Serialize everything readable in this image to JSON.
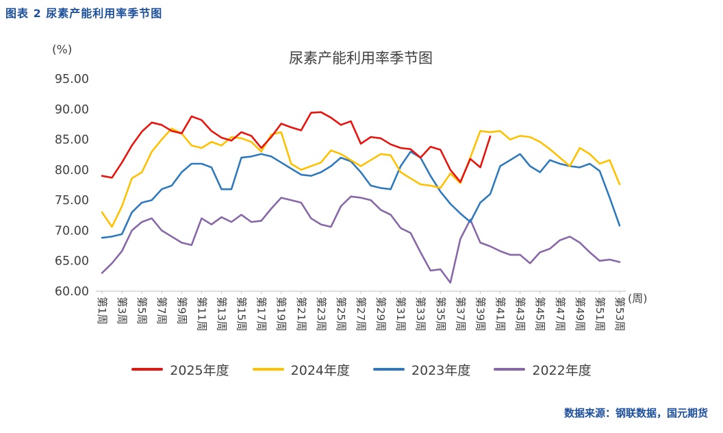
{
  "header": {
    "caption": "图表 2 尿素产能利用率季节图"
  },
  "footer": {
    "source": "数据来源：钢联数据，国元期货"
  },
  "chart_data": {
    "type": "line",
    "title": "尿素产能利用率季节图",
    "grid": false,
    "legend_position": "bottom",
    "y_axis": {
      "unit_label": "(%)",
      "min": 60,
      "max": 95,
      "tick_step": 5,
      "tick_labels": [
        "95.00",
        "90.00",
        "85.00",
        "80.00",
        "75.00",
        "70.00",
        "65.00",
        "60.00"
      ]
    },
    "x_axis": {
      "unit_label": "(周)",
      "weeks": 53,
      "tick_labels": [
        "第1周",
        "第3周",
        "第5周",
        "第7周",
        "第9周",
        "第11周",
        "第13周",
        "第15周",
        "第17周",
        "第19周",
        "第21周",
        "第23周",
        "第25周",
        "第27周",
        "第29周",
        "第31周",
        "第33周",
        "第35周",
        "第37周",
        "第39周",
        "第41周",
        "第43周",
        "第45周",
        "第47周",
        "第49周",
        "第51周",
        "第53周"
      ]
    },
    "series": [
      {
        "name": "2025年度",
        "color": "#e8130c",
        "values": [
          79.0,
          78.7,
          81.2,
          84.0,
          86.3,
          87.8,
          87.4,
          86.4,
          86.0,
          88.8,
          88.2,
          86.4,
          85.3,
          84.8,
          86.2,
          85.6,
          83.6,
          85.4,
          87.6,
          87.0,
          86.5,
          89.4,
          89.5,
          88.6,
          87.4,
          88.0,
          84.3,
          85.4,
          85.2,
          84.2,
          83.6,
          83.4,
          82.0,
          83.8,
          83.3,
          80.0,
          78.0,
          81.8,
          80.4,
          85.5,
          null,
          null,
          null,
          null,
          null,
          null,
          null,
          null,
          null,
          null,
          null,
          null,
          null
        ]
      },
      {
        "name": "2024年度",
        "color": "#ffc000",
        "values": [
          73.0,
          70.6,
          74.0,
          78.6,
          79.6,
          83.0,
          85.0,
          86.8,
          86.0,
          84.0,
          83.6,
          84.6,
          84.0,
          85.4,
          85.2,
          84.6,
          83.0,
          85.8,
          86.2,
          81.0,
          80.0,
          80.6,
          81.2,
          83.2,
          82.6,
          81.6,
          80.6,
          81.6,
          82.6,
          82.4,
          79.6,
          78.6,
          77.6,
          77.4,
          77.0,
          79.4,
          77.8,
          82.0,
          86.4,
          86.2,
          86.4,
          85.0,
          85.6,
          85.4,
          84.6,
          83.4,
          82.0,
          80.6,
          83.6,
          82.6,
          81.0,
          81.6,
          77.6
        ]
      },
      {
        "name": "2023年度",
        "color": "#2e79bd",
        "values": [
          68.8,
          69.0,
          69.4,
          73.0,
          74.6,
          75.0,
          76.8,
          77.4,
          79.6,
          81.0,
          81.0,
          80.4,
          76.8,
          76.8,
          82.0,
          82.2,
          82.6,
          82.2,
          81.2,
          80.2,
          79.2,
          79.0,
          79.6,
          80.6,
          82.0,
          81.4,
          79.6,
          77.4,
          77.0,
          76.8,
          80.6,
          83.0,
          82.0,
          79.0,
          76.4,
          74.4,
          72.8,
          71.4,
          74.6,
          76.0,
          80.6,
          81.6,
          82.6,
          80.6,
          79.6,
          81.6,
          81.0,
          80.6,
          80.4,
          81.0,
          79.8,
          75.4,
          70.8
        ]
      },
      {
        "name": "2022年度",
        "color": "#8767a8",
        "values": [
          63.0,
          64.6,
          66.6,
          70.0,
          71.4,
          72.0,
          70.0,
          69.0,
          68.0,
          67.6,
          72.0,
          71.0,
          72.2,
          71.4,
          72.6,
          71.4,
          71.6,
          73.6,
          75.4,
          75.0,
          74.6,
          72.0,
          71.0,
          70.6,
          74.0,
          75.6,
          75.4,
          75.0,
          73.4,
          72.6,
          70.4,
          69.6,
          66.4,
          63.4,
          63.6,
          61.4,
          68.6,
          71.8,
          68.0,
          67.4,
          66.6,
          66.0,
          66.0,
          64.6,
          66.4,
          67.0,
          68.4,
          69.0,
          68.0,
          66.4,
          65.0,
          65.2,
          64.8
        ]
      }
    ]
  }
}
